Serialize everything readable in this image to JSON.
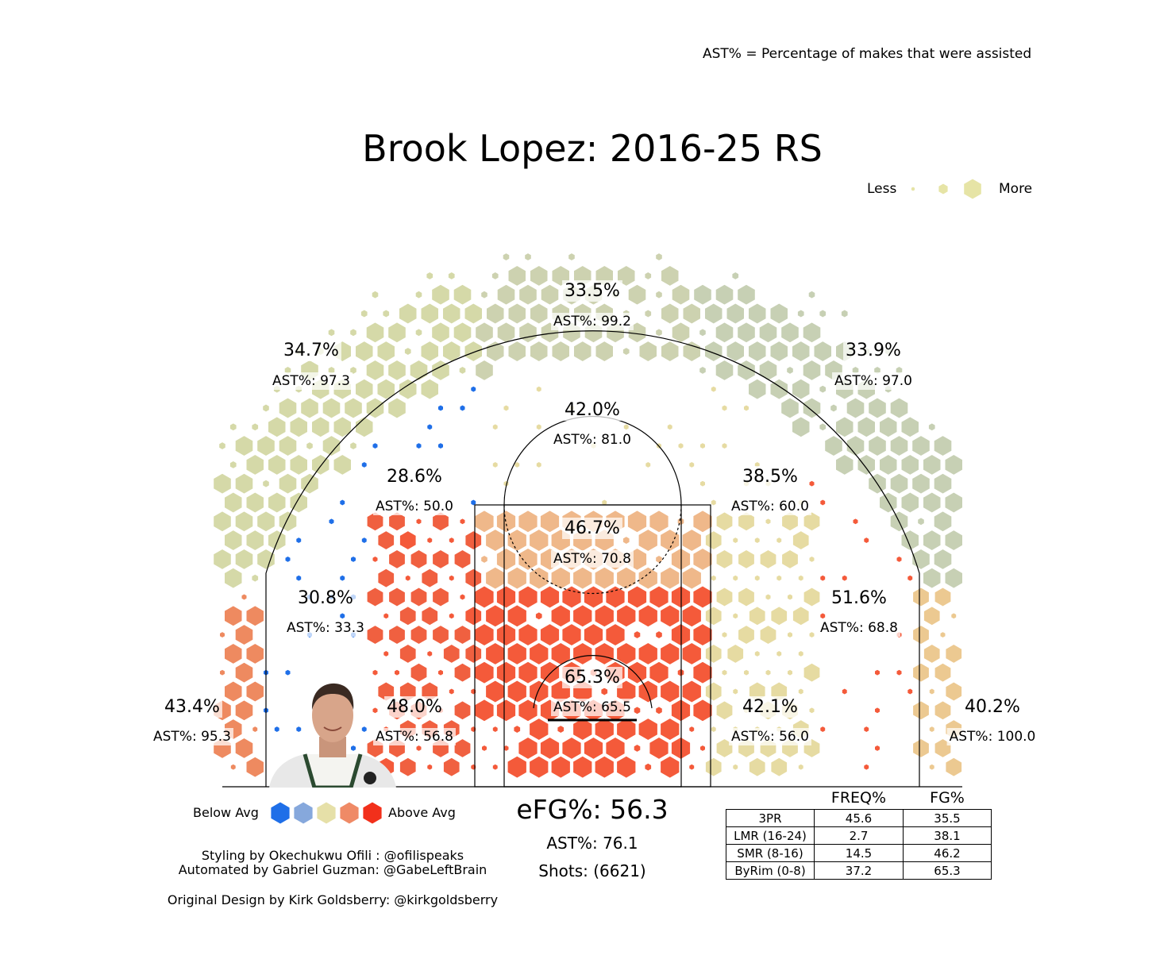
{
  "header": {
    "ast_note": "AST% = Percentage of makes that were assisted",
    "title": "Brook Lopez: 2016-25 RS"
  },
  "size_legend": {
    "less_label": "Less",
    "more_label": "More"
  },
  "color_legend": {
    "below_label": "Below Avg",
    "above_label": "Above Avg",
    "colors": [
      "#1f6fe8",
      "#86a8dc",
      "#e6e0a8",
      "#ef8a66",
      "#f2301b"
    ]
  },
  "summary": {
    "efg": "eFG%: 56.3",
    "ast": "AST%: 76.1",
    "shots": "Shots: (6621)"
  },
  "credits": {
    "line1": "Styling by Okechukwu Ofili : @ofilispeaks",
    "line2": "Automated by Gabriel Guzman: @GabeLeftBrain",
    "line3": "Original Design by Kirk Goldsberry: @kirkgoldsberry"
  },
  "zone_table": {
    "headers": [
      "",
      "FREQ%",
      "FG%"
    ],
    "rows": [
      [
        "3PR",
        "45.6",
        "35.5"
      ],
      [
        "LMR (16-24)",
        "2.7",
        "38.1"
      ],
      [
        "SMR (8-16)",
        "14.5",
        "46.2"
      ],
      [
        "ByRim (0-8)",
        "37.2",
        "65.3"
      ]
    ]
  },
  "photo": {
    "description": "player-headshot"
  },
  "chart_data": {
    "type": "hexbin-shot-chart",
    "zones": [
      {
        "name": "Left corner 3",
        "fg": "43.4%",
        "ast": "AST%: 95.3"
      },
      {
        "name": "Left wing 3",
        "fg": "34.7%",
        "ast": "AST%: 97.3"
      },
      {
        "name": "Top of key 3",
        "fg": "33.5%",
        "ast": "AST%: 99.2"
      },
      {
        "name": "Right wing 3",
        "fg": "33.9%",
        "ast": "AST%: 97.0"
      },
      {
        "name": "Right corner 3",
        "fg": "40.2%",
        "ast": "AST%: 100.0"
      },
      {
        "name": "Left long mid",
        "fg": "28.6%",
        "ast": "AST%: 50.0"
      },
      {
        "name": "Top long mid",
        "fg": "42.0%",
        "ast": "AST%: 81.0"
      },
      {
        "name": "Right long mid",
        "fg": "38.5%",
        "ast": "AST%: 60.0"
      },
      {
        "name": "Left short mid wing",
        "fg": "30.8%",
        "ast": "AST%: 33.3"
      },
      {
        "name": "Paint (non-RA)",
        "fg": "46.7%",
        "ast": "AST%: 70.8"
      },
      {
        "name": "Right short mid wing",
        "fg": "51.6%",
        "ast": "AST%: 68.8"
      },
      {
        "name": "Left short mid baseline",
        "fg": "48.0%",
        "ast": "AST%: 56.8"
      },
      {
        "name": "Restricted area",
        "fg": "65.3%",
        "ast": "AST%: 65.5"
      },
      {
        "name": "Right short mid baseline",
        "fg": "42.1%",
        "ast": "AST%: 56.0"
      }
    ]
  }
}
